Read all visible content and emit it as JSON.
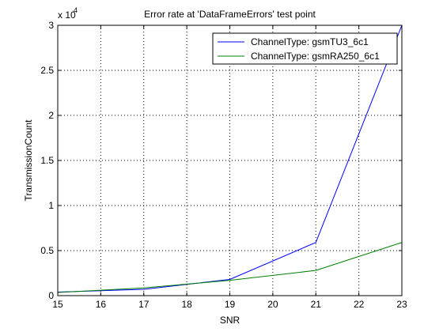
{
  "chart_data": {
    "type": "line",
    "title": "Error rate at 'DataFrameErrors' test point",
    "xlabel": "SNR",
    "ylabel": "TransmissionCount",
    "xlim": [
      15,
      23
    ],
    "ylim": [
      0,
      30000
    ],
    "x_ticks": [
      15,
      16,
      17,
      18,
      19,
      20,
      21,
      22,
      23
    ],
    "y_ticks": [
      0,
      5000,
      10000,
      15000,
      20000,
      25000,
      30000
    ],
    "y_tick_labels": [
      "0",
      "0.5",
      "1",
      "1.5",
      "2",
      "2.5",
      "3"
    ],
    "y_exponent_base": "x 10",
    "y_exponent_power": "4",
    "grid": true,
    "grid_style": "dotted",
    "legend_position": "top-right",
    "series": [
      {
        "name": "ChannelType: gsmTU3_6c1",
        "color": "#0000ff",
        "x": [
          15,
          17,
          19,
          21,
          23
        ],
        "values": [
          400,
          700,
          1800,
          5900,
          30000
        ]
      },
      {
        "name": "ChannelType: gsmRA250_6c1",
        "color": "#008000",
        "x": [
          15,
          17,
          19,
          21,
          23
        ],
        "values": [
          350,
          850,
          1700,
          2800,
          5900
        ]
      }
    ]
  }
}
